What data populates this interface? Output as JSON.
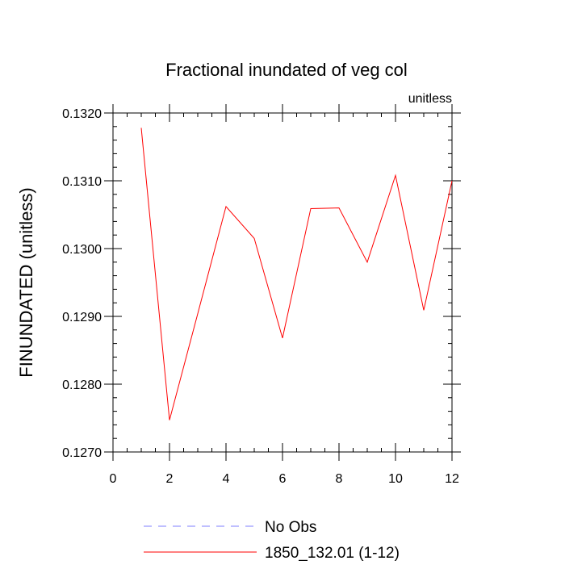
{
  "chart_data": {
    "type": "line",
    "title": "Fractional inundated of veg col",
    "units_label": "unitless",
    "xlabel": "",
    "ylabel": "FINUNDATED  (unitless)",
    "xlim": [
      0,
      12
    ],
    "ylim": [
      0.127,
      0.132
    ],
    "x_ticks": [
      "0",
      "2",
      "4",
      "6",
      "8",
      "10",
      "12"
    ],
    "y_ticks": [
      "0.1270",
      "0.1280",
      "0.1290",
      "0.1300",
      "0.1310",
      "0.1320"
    ],
    "grid": false,
    "legend_position": "bottom",
    "series": [
      {
        "name": "No Obs",
        "color": "#7f7fff",
        "style": "dashed",
        "x": [],
        "y": []
      },
      {
        "name": "1850_132.01 (1-12)",
        "color": "#ff0000",
        "style": "solid",
        "x": [
          1,
          2,
          3,
          4,
          5,
          6,
          7,
          8,
          9,
          10,
          11,
          12
        ],
        "y": [
          0.13178,
          0.12747,
          0.12904,
          0.13062,
          0.13015,
          0.12868,
          0.13059,
          0.1306,
          0.1298,
          0.13108,
          0.12909,
          0.131
        ]
      }
    ]
  }
}
